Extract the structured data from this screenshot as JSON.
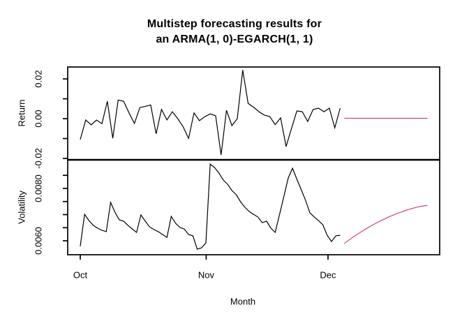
{
  "title": {
    "line1": "Multistep forecasting results for",
    "line2": "an ARMA(1, 0)-EGARCH(1, 1)"
  },
  "colors": {
    "background": "#ffffff",
    "axis": "#000000",
    "observed_series": "#000000",
    "forecast_series": "#cc4866"
  },
  "chart_data": [
    {
      "type": "line",
      "panel": "top",
      "title": "Multistep forecasting results for an ARMA(1, 0)-EGARCH(1, 1)",
      "ylabel": "Return",
      "ylim": [
        -0.0207,
        0.026
      ],
      "grid": false,
      "legend": "none",
      "yticks": [
        {
          "v": 0.02,
          "label": "0.02"
        },
        {
          "v": 0.01,
          "label": ""
        },
        {
          "v": 0.0,
          "label": "0.00"
        },
        {
          "v": -0.01,
          "label": ""
        },
        {
          "v": -0.02,
          "label": "-0.02"
        }
      ],
      "series": [
        {
          "name": "return-observed",
          "color": "#000000",
          "x_start": 0,
          "x_end": 64,
          "values": [
            -0.0105,
            -0.0006,
            -0.0031,
            -0.0007,
            -0.0025,
            0.0088,
            -0.0099,
            0.0094,
            0.0088,
            0.0029,
            -0.0024,
            0.0056,
            0.0062,
            0.0069,
            -0.0076,
            0.0047,
            -0.0006,
            0.0035,
            0.0,
            -0.0041,
            -0.0099,
            0.0029,
            -0.001,
            0.001,
            0.0024,
            0.0015,
            -0.0182,
            0.0042,
            -0.0035,
            0.0,
            0.0245,
            0.0077,
            0.0058,
            0.0035,
            0.0018,
            0.001,
            -0.003,
            0.0004,
            -0.014,
            -0.005,
            0.0039,
            0.0035,
            -0.0014,
            0.0046,
            0.0053,
            0.0035,
            0.0053,
            -0.0046,
            0.0053
          ]
        },
        {
          "name": "return-forecast",
          "color": "#cc4866",
          "x_start": 65,
          "x_end": 85.5,
          "values": [
            0.0002,
            0.0002,
            0.0002,
            0.0002,
            0.0002,
            0.0002,
            0.0002,
            0.0002,
            0.0002,
            0.0002,
            0.0002,
            0.0002,
            0.0002,
            0.0002,
            0.0002,
            0.0002,
            0.0002,
            0.0002,
            0.0002,
            0.0002
          ]
        }
      ]
    },
    {
      "type": "line",
      "panel": "bottom",
      "ylabel": "Volatility",
      "xlabel": "Month",
      "ylim": [
        0.005467,
        0.009093
      ],
      "xlim": [
        -3.1,
        88.5
      ],
      "grid": false,
      "legend": "none",
      "yticks": [
        {
          "v": 0.0085,
          "label": ""
        },
        {
          "v": 0.008,
          "label": "0.0080"
        },
        {
          "v": 0.0075,
          "label": ""
        },
        {
          "v": 0.007,
          "label": ""
        },
        {
          "v": 0.0065,
          "label": ""
        },
        {
          "v": 0.006,
          "label": "0.0060"
        }
      ],
      "xticks": [
        {
          "v": 0,
          "label": "Oct"
        },
        {
          "v": 31,
          "label": "Nov"
        },
        {
          "v": 61,
          "label": "Dec"
        }
      ],
      "series": [
        {
          "name": "volatility-observed",
          "color": "#000000",
          "x_start": 0,
          "x_end": 64,
          "values": [
            0.00579,
            0.00701,
            0.00677,
            0.00659,
            0.00648,
            0.0064,
            0.00635,
            0.00747,
            0.00709,
            0.0068,
            0.00675,
            0.00659,
            0.00645,
            0.00632,
            0.00699,
            0.00675,
            0.00653,
            0.00643,
            0.00635,
            0.00624,
            0.00613,
            0.00693,
            0.00667,
            0.00651,
            0.00645,
            0.00624,
            0.00619,
            0.00568,
            0.00573,
            0.00592,
            0.00893,
            0.0088,
            0.00859,
            0.00832,
            0.00816,
            0.00792,
            0.00776,
            0.00749,
            0.00728,
            0.00712,
            0.00701,
            0.00691,
            0.00669,
            0.00675,
            0.00648,
            0.00632,
            0.007,
            0.0077,
            0.0084,
            0.00877,
            0.00835,
            0.00795,
            0.00755,
            0.00707,
            0.00691,
            0.00677,
            0.00661,
            0.00621,
            0.00597,
            0.00619,
            0.00621
          ]
        },
        {
          "name": "volatility-forecast",
          "color": "#cc4866",
          "x_start": 65,
          "x_end": 85.5,
          "values": [
            0.0059,
            0.00602,
            0.00614,
            0.00625,
            0.00636,
            0.00646,
            0.00656,
            0.00665,
            0.00674,
            0.00682,
            0.0069,
            0.00697,
            0.00704,
            0.0071,
            0.00716,
            0.00721,
            0.00726,
            0.0073,
            0.00733,
            0.00735
          ]
        }
      ]
    }
  ],
  "xaxis": {
    "label": "Month"
  }
}
